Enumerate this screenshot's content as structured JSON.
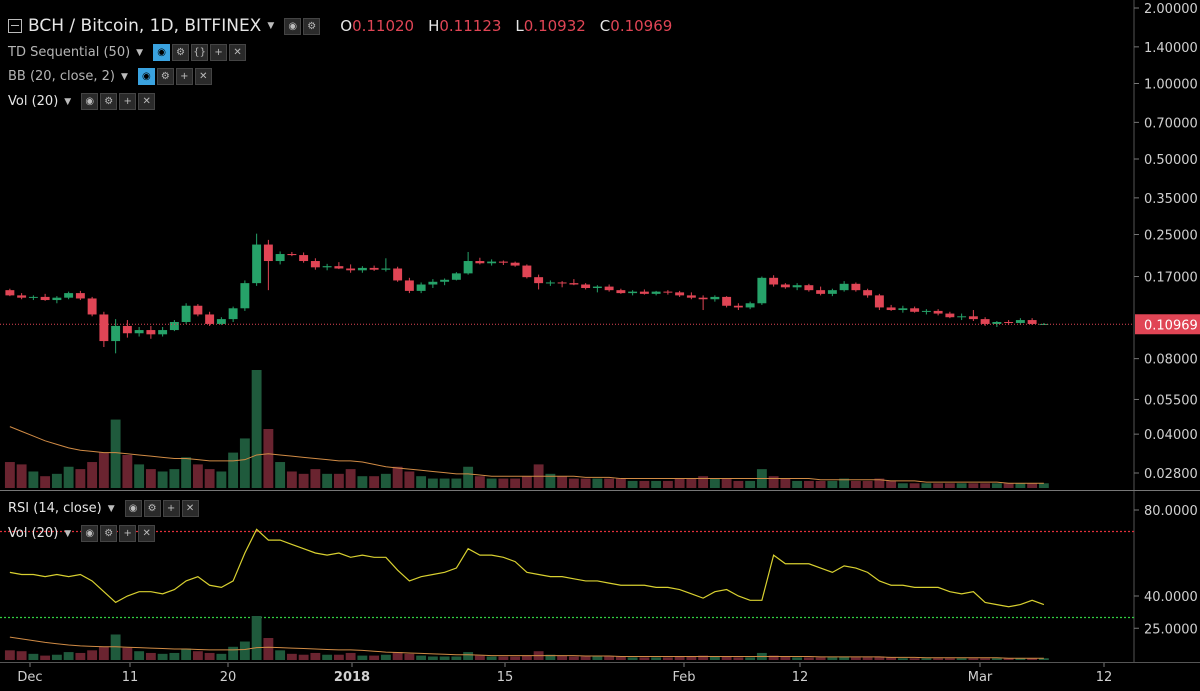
{
  "header": {
    "symbol_title": "BCH / Bitcoin, 1D, BITFINEX",
    "ohlc": [
      {
        "k": "O",
        "v": "0.11020"
      },
      {
        "k": "H",
        "v": "0.11123"
      },
      {
        "k": "L",
        "v": "0.10932"
      },
      {
        "k": "C",
        "v": "0.10969"
      }
    ]
  },
  "indicators": {
    "td": "TD Sequential (50)",
    "bb": "BB (20, close, 2)",
    "vol_main": "Vol (20)",
    "rsi": "RSI (14, close)",
    "vol_rsi": "Vol (20)"
  },
  "colors": {
    "up": "#26a269",
    "down": "#e04555",
    "rsi": "#d8d030",
    "ma": "#d08b45",
    "overbought": "#e0303a",
    "oversold": "#30d040",
    "bg": "#000000"
  },
  "chart_data": [
    {
      "type": "candlestick",
      "price_axis_ticks": [
        "2.00000",
        "1.40000",
        "1.00000",
        "0.70000",
        "0.50000",
        "0.35000",
        "0.25000",
        "0.17000",
        "0.10969",
        "0.08000",
        "0.05500",
        "0.04000",
        "0.02800"
      ],
      "current_price": "0.10969",
      "x_tick_labels": [
        "Dec",
        "11",
        "20",
        "2018",
        "15",
        "Feb",
        "12",
        "Mar",
        "12"
      ],
      "scale": "log",
      "candles": [
        [
          0.15,
          0.152,
          0.142,
          0.143
        ],
        [
          0.143,
          0.146,
          0.138,
          0.14
        ],
        [
          0.14,
          0.143,
          0.137,
          0.141
        ],
        [
          0.141,
          0.145,
          0.136,
          0.137
        ],
        [
          0.137,
          0.142,
          0.133,
          0.14
        ],
        [
          0.14,
          0.148,
          0.138,
          0.146
        ],
        [
          0.146,
          0.149,
          0.137,
          0.139
        ],
        [
          0.139,
          0.141,
          0.118,
          0.12
        ],
        [
          0.12,
          0.123,
          0.089,
          0.094
        ],
        [
          0.094,
          0.115,
          0.084,
          0.108
        ],
        [
          0.108,
          0.114,
          0.097,
          0.101
        ],
        [
          0.101,
          0.107,
          0.098,
          0.104
        ],
        [
          0.104,
          0.108,
          0.096,
          0.1
        ],
        [
          0.1,
          0.107,
          0.098,
          0.104
        ],
        [
          0.104,
          0.114,
          0.103,
          0.112
        ],
        [
          0.112,
          0.133,
          0.11,
          0.13
        ],
        [
          0.13,
          0.132,
          0.118,
          0.12
        ],
        [
          0.12,
          0.123,
          0.108,
          0.11
        ],
        [
          0.11,
          0.117,
          0.109,
          0.115
        ],
        [
          0.115,
          0.129,
          0.112,
          0.127
        ],
        [
          0.127,
          0.164,
          0.124,
          0.16
        ],
        [
          0.16,
          0.252,
          0.156,
          0.228
        ],
        [
          0.228,
          0.238,
          0.15,
          0.196
        ],
        [
          0.196,
          0.214,
          0.19,
          0.209
        ],
        [
          0.209,
          0.213,
          0.205,
          0.207
        ],
        [
          0.207,
          0.212,
          0.193,
          0.196
        ],
        [
          0.196,
          0.201,
          0.181,
          0.185
        ],
        [
          0.185,
          0.191,
          0.18,
          0.187
        ],
        [
          0.187,
          0.194,
          0.182,
          0.183
        ],
        [
          0.183,
          0.19,
          0.176,
          0.18
        ],
        [
          0.18,
          0.187,
          0.176,
          0.184
        ],
        [
          0.184,
          0.188,
          0.179,
          0.181
        ],
        [
          0.181,
          0.201,
          0.178,
          0.183
        ],
        [
          0.183,
          0.186,
          0.162,
          0.164
        ],
        [
          0.164,
          0.168,
          0.146,
          0.149
        ],
        [
          0.149,
          0.161,
          0.146,
          0.158
        ],
        [
          0.158,
          0.166,
          0.153,
          0.162
        ],
        [
          0.162,
          0.167,
          0.157,
          0.165
        ],
        [
          0.165,
          0.177,
          0.164,
          0.175
        ],
        [
          0.175,
          0.213,
          0.173,
          0.196
        ],
        [
          0.196,
          0.202,
          0.19,
          0.192
        ],
        [
          0.192,
          0.199,
          0.188,
          0.195
        ],
        [
          0.195,
          0.197,
          0.189,
          0.193
        ],
        [
          0.193,
          0.195,
          0.186,
          0.188
        ],
        [
          0.188,
          0.19,
          0.167,
          0.169
        ],
        [
          0.169,
          0.173,
          0.151,
          0.16
        ],
        [
          0.16,
          0.164,
          0.156,
          0.161
        ],
        [
          0.161,
          0.163,
          0.154,
          0.16
        ],
        [
          0.16,
          0.166,
          0.157,
          0.158
        ],
        [
          0.158,
          0.16,
          0.151,
          0.153
        ],
        [
          0.153,
          0.157,
          0.147,
          0.155
        ],
        [
          0.155,
          0.158,
          0.148,
          0.15
        ],
        [
          0.15,
          0.152,
          0.145,
          0.146
        ],
        [
          0.146,
          0.15,
          0.143,
          0.148
        ],
        [
          0.148,
          0.151,
          0.144,
          0.145
        ],
        [
          0.145,
          0.149,
          0.143,
          0.148
        ],
        [
          0.148,
          0.15,
          0.144,
          0.147
        ],
        [
          0.147,
          0.149,
          0.141,
          0.143
        ],
        [
          0.143,
          0.147,
          0.138,
          0.14
        ],
        [
          0.14,
          0.143,
          0.125,
          0.138
        ],
        [
          0.138,
          0.143,
          0.135,
          0.141
        ],
        [
          0.141,
          0.142,
          0.128,
          0.13
        ],
        [
          0.13,
          0.133,
          0.125,
          0.128
        ],
        [
          0.128,
          0.135,
          0.126,
          0.133
        ],
        [
          0.133,
          0.17,
          0.131,
          0.168
        ],
        [
          0.168,
          0.172,
          0.155,
          0.158
        ],
        [
          0.158,
          0.16,
          0.152,
          0.154
        ],
        [
          0.154,
          0.16,
          0.15,
          0.157
        ],
        [
          0.157,
          0.159,
          0.148,
          0.15
        ],
        [
          0.15,
          0.155,
          0.143,
          0.145
        ],
        [
          0.145,
          0.152,
          0.142,
          0.15
        ],
        [
          0.15,
          0.163,
          0.148,
          0.159
        ],
        [
          0.159,
          0.161,
          0.148,
          0.15
        ],
        [
          0.15,
          0.152,
          0.14,
          0.143
        ],
        [
          0.143,
          0.145,
          0.125,
          0.128
        ],
        [
          0.128,
          0.131,
          0.124,
          0.125
        ],
        [
          0.125,
          0.13,
          0.122,
          0.127
        ],
        [
          0.127,
          0.129,
          0.122,
          0.123
        ],
        [
          0.123,
          0.126,
          0.12,
          0.124
        ],
        [
          0.124,
          0.126,
          0.119,
          0.121
        ],
        [
          0.121,
          0.123,
          0.116,
          0.117
        ],
        [
          0.117,
          0.121,
          0.114,
          0.118
        ],
        [
          0.118,
          0.125,
          0.113,
          0.115
        ],
        [
          0.115,
          0.117,
          0.108,
          0.11
        ],
        [
          0.11,
          0.113,
          0.107,
          0.112
        ],
        [
          0.112,
          0.114,
          0.109,
          0.111
        ],
        [
          0.111,
          0.116,
          0.109,
          0.114
        ],
        [
          0.114,
          0.116,
          0.109,
          0.11
        ],
        [
          0.11,
          0.111,
          0.109,
          0.11
        ]
      ],
      "volume": [
        0.22,
        0.2,
        0.14,
        0.1,
        0.12,
        0.18,
        0.16,
        0.22,
        0.3,
        0.58,
        0.28,
        0.2,
        0.16,
        0.14,
        0.16,
        0.26,
        0.2,
        0.16,
        0.14,
        0.3,
        0.42,
        1.0,
        0.5,
        0.22,
        0.14,
        0.12,
        0.16,
        0.12,
        0.12,
        0.16,
        0.1,
        0.1,
        0.12,
        0.18,
        0.14,
        0.1,
        0.08,
        0.08,
        0.08,
        0.18,
        0.1,
        0.08,
        0.08,
        0.08,
        0.1,
        0.2,
        0.12,
        0.1,
        0.08,
        0.08,
        0.08,
        0.08,
        0.08,
        0.06,
        0.06,
        0.06,
        0.06,
        0.08,
        0.08,
        0.1,
        0.08,
        0.08,
        0.06,
        0.06,
        0.16,
        0.1,
        0.08,
        0.06,
        0.06,
        0.06,
        0.06,
        0.08,
        0.06,
        0.06,
        0.08,
        0.06,
        0.04,
        0.04,
        0.04,
        0.04,
        0.04,
        0.04,
        0.04,
        0.04,
        0.04,
        0.04,
        0.04,
        0.04,
        0.04
      ],
      "volume_ma": [
        0.52,
        0.48,
        0.44,
        0.4,
        0.37,
        0.34,
        0.32,
        0.31,
        0.3,
        0.3,
        0.29,
        0.28,
        0.27,
        0.26,
        0.25,
        0.25,
        0.24,
        0.23,
        0.23,
        0.23,
        0.24,
        0.28,
        0.29,
        0.28,
        0.27,
        0.26,
        0.25,
        0.24,
        0.23,
        0.23,
        0.22,
        0.2,
        0.18,
        0.17,
        0.16,
        0.15,
        0.14,
        0.13,
        0.12,
        0.12,
        0.11,
        0.1,
        0.1,
        0.1,
        0.1,
        0.1,
        0.1,
        0.1,
        0.1,
        0.09,
        0.09,
        0.09,
        0.08,
        0.08,
        0.08,
        0.08,
        0.08,
        0.08,
        0.08,
        0.08,
        0.08,
        0.08,
        0.08,
        0.08,
        0.08,
        0.08,
        0.08,
        0.08,
        0.08,
        0.07,
        0.07,
        0.07,
        0.07,
        0.07,
        0.07,
        0.06,
        0.06,
        0.06,
        0.05,
        0.05,
        0.05,
        0.05,
        0.05,
        0.05,
        0.05,
        0.04,
        0.04,
        0.04,
        0.04
      ]
    },
    {
      "type": "line",
      "name": "RSI (14, close)",
      "axis_ticks": [
        "80.0000",
        "40.0000",
        "25.0000"
      ],
      "overbought": 70,
      "oversold": 30,
      "values": [
        51,
        50,
        50,
        49,
        50,
        49,
        50,
        47,
        42,
        37,
        40,
        42,
        42,
        41,
        43,
        47,
        49,
        45,
        44,
        47,
        60,
        71,
        66,
        66,
        64,
        62,
        60,
        59,
        60,
        58,
        59,
        58,
        58,
        52,
        47,
        49,
        50,
        51,
        53,
        62,
        59,
        59,
        58,
        56,
        51,
        50,
        49,
        49,
        48,
        47,
        47,
        46,
        45,
        45,
        45,
        44,
        44,
        43,
        41,
        39,
        42,
        43,
        40,
        38,
        38,
        59,
        55,
        55,
        55,
        53,
        51,
        54,
        53,
        51,
        47,
        45,
        45,
        44,
        44,
        44,
        42,
        41,
        42,
        37,
        36,
        35,
        36,
        38,
        36
      ]
    }
  ]
}
